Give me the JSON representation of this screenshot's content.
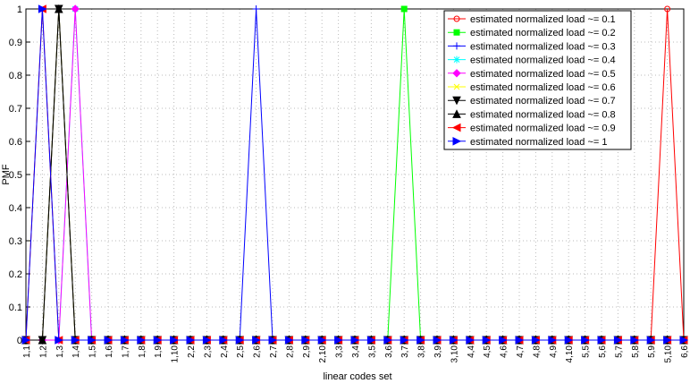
{
  "chart_data": {
    "type": "line",
    "x_label": "linear codes set",
    "y_label": "PMF",
    "categories": [
      "1,1",
      "1,2",
      "1,3",
      "1,4",
      "1,5",
      "1,6",
      "1,7",
      "1,8",
      "1,9",
      "1,10",
      "2,2",
      "2,3",
      "2,4",
      "2,5",
      "2,6",
      "2,7",
      "2,8",
      "2,9",
      "2,10",
      "3,3",
      "3,4",
      "3,5",
      "3,6",
      "3,7",
      "3,8",
      "3,9",
      "3,10",
      "4,4",
      "4,5",
      "4,6",
      "4,7",
      "4,8",
      "4,9",
      "4,10",
      "5,5",
      "5,6",
      "5,7",
      "5,8",
      "5,9",
      "5,10",
      "6,6"
    ],
    "ylim": [
      0,
      1
    ],
    "yticks": [
      0,
      0.1,
      0.2,
      0.3,
      0.4,
      0.5,
      0.6,
      0.7,
      0.8,
      0.9,
      1
    ],
    "grid": true,
    "legend": "top-right",
    "series": [
      {
        "name": "estimated normalized load ~= 0.1",
        "color": "#ff0000",
        "marker": "o",
        "values": [
          0,
          0,
          0,
          0,
          0,
          0,
          0,
          0,
          0,
          0,
          0,
          0,
          0,
          0,
          0,
          0,
          0,
          0,
          0,
          0,
          0,
          0,
          0,
          0,
          0,
          0,
          0,
          0,
          0,
          0,
          0,
          0,
          0,
          0,
          0,
          0,
          0,
          0,
          0,
          1,
          0
        ]
      },
      {
        "name": "estimated normalized load ~= 0.2",
        "color": "#00ff00",
        "marker": "s",
        "values": [
          0,
          0,
          0,
          0,
          0,
          0,
          0,
          0,
          0,
          0,
          0,
          0,
          0,
          0,
          0,
          0,
          0,
          0,
          0,
          0,
          0,
          0,
          0,
          1,
          0,
          0,
          0,
          0,
          0,
          0,
          0,
          0,
          0,
          0,
          0,
          0,
          0,
          0,
          0,
          0,
          0
        ]
      },
      {
        "name": "estimated normalized load ~= 0.3",
        "color": "#0000ff",
        "marker": "+",
        "values": [
          0,
          0,
          0,
          0,
          0,
          0,
          0,
          0,
          0,
          0,
          0,
          0,
          0,
          0,
          1,
          0,
          0,
          0,
          0,
          0,
          0,
          0,
          0,
          0,
          0,
          0,
          0,
          0,
          0,
          0,
          0,
          0,
          0,
          0,
          0,
          0,
          0,
          0,
          0,
          0,
          0
        ]
      },
      {
        "name": "estimated normalized load ~= 0.4",
        "color": "#00ffff",
        "marker": "*",
        "values": [
          0,
          0,
          0,
          1,
          0,
          0,
          0,
          0,
          0,
          0,
          0,
          0,
          0,
          0,
          0,
          0,
          0,
          0,
          0,
          0,
          0,
          0,
          0,
          0,
          0,
          0,
          0,
          0,
          0,
          0,
          0,
          0,
          0,
          0,
          0,
          0,
          0,
          0,
          0,
          0,
          0
        ]
      },
      {
        "name": "estimated normalized load ~= 0.5",
        "color": "#ff00ff",
        "marker": "d",
        "values": [
          0,
          0,
          0,
          1,
          0,
          0,
          0,
          0,
          0,
          0,
          0,
          0,
          0,
          0,
          0,
          0,
          0,
          0,
          0,
          0,
          0,
          0,
          0,
          0,
          0,
          0,
          0,
          0,
          0,
          0,
          0,
          0,
          0,
          0,
          0,
          0,
          0,
          0,
          0,
          0,
          0
        ]
      },
      {
        "name": "estimated normalized load ~= 0.6",
        "color": "#ffff00",
        "marker": "x",
        "values": [
          0,
          0,
          1,
          0,
          0,
          0,
          0,
          0,
          0,
          0,
          0,
          0,
          0,
          0,
          0,
          0,
          0,
          0,
          0,
          0,
          0,
          0,
          0,
          0,
          0,
          0,
          0,
          0,
          0,
          0,
          0,
          0,
          0,
          0,
          0,
          0,
          0,
          0,
          0,
          0,
          0
        ]
      },
      {
        "name": "estimated normalized load ~= 0.7",
        "color": "#000000",
        "marker": "v",
        "values": [
          0,
          0,
          1,
          0,
          0,
          0,
          0,
          0,
          0,
          0,
          0,
          0,
          0,
          0,
          0,
          0,
          0,
          0,
          0,
          0,
          0,
          0,
          0,
          0,
          0,
          0,
          0,
          0,
          0,
          0,
          0,
          0,
          0,
          0,
          0,
          0,
          0,
          0,
          0,
          0,
          0
        ]
      },
      {
        "name": "estimated normalized load ~= 0.8",
        "color": "#000000",
        "marker": "^",
        "values": [
          0,
          0,
          1,
          0,
          0,
          0,
          0,
          0,
          0,
          0,
          0,
          0,
          0,
          0,
          0,
          0,
          0,
          0,
          0,
          0,
          0,
          0,
          0,
          0,
          0,
          0,
          0,
          0,
          0,
          0,
          0,
          0,
          0,
          0,
          0,
          0,
          0,
          0,
          0,
          0,
          0
        ]
      },
      {
        "name": "estimated normalized load ~= 0.9",
        "color": "#ff0000",
        "marker": "<",
        "values": [
          0,
          1,
          0,
          0,
          0,
          0,
          0,
          0,
          0,
          0,
          0,
          0,
          0,
          0,
          0,
          0,
          0,
          0,
          0,
          0,
          0,
          0,
          0,
          0,
          0,
          0,
          0,
          0,
          0,
          0,
          0,
          0,
          0,
          0,
          0,
          0,
          0,
          0,
          0,
          0,
          0
        ]
      },
      {
        "name": "estimated normalized load ~= 1",
        "color": "#0000ff",
        "marker": ">",
        "values": [
          0,
          1,
          0,
          0,
          0,
          0,
          0,
          0,
          0,
          0,
          0,
          0,
          0,
          0,
          0,
          0,
          0,
          0,
          0,
          0,
          0,
          0,
          0,
          0,
          0,
          0,
          0,
          0,
          0,
          0,
          0,
          0,
          0,
          0,
          0,
          0,
          0,
          0,
          0,
          0,
          0
        ]
      }
    ]
  }
}
